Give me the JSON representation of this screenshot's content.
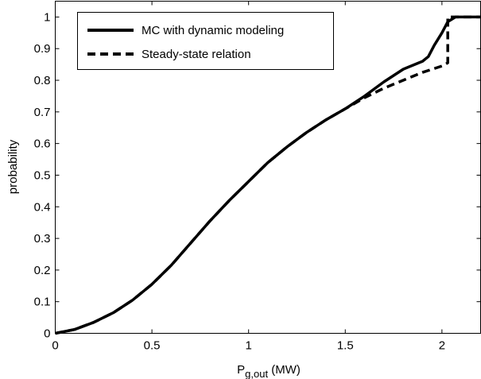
{
  "chart_data": {
    "type": "line",
    "xlabel_main": "P",
    "xlabel_sub": "g,out",
    "xlabel_unit": " (MW)",
    "ylabel": "probability",
    "xlim": [
      0,
      2.2
    ],
    "ylim": [
      0,
      1.05
    ],
    "x_ticks": [
      0,
      0.5,
      1,
      1.5,
      2
    ],
    "x_tick_labels": [
      "0",
      "0.5",
      "1",
      "1.5",
      "2"
    ],
    "y_ticks": [
      0,
      0.1,
      0.2,
      0.3,
      0.4,
      0.5,
      0.6,
      0.7,
      0.8,
      0.9,
      1
    ],
    "y_tick_labels": [
      "0",
      "0.1",
      "0.2",
      "0.3",
      "0.4",
      "0.5",
      "0.6",
      "0.7",
      "0.8",
      "0.9",
      "1"
    ],
    "grid": false,
    "legend_position": "top-left",
    "series": [
      {
        "name": "MC with dynamic modeling",
        "style": "solid",
        "color": "#000000",
        "x": [
          0,
          0.1,
          0.2,
          0.3,
          0.4,
          0.5,
          0.6,
          0.7,
          0.8,
          0.9,
          1.0,
          1.1,
          1.2,
          1.3,
          1.4,
          1.5,
          1.6,
          1.7,
          1.8,
          1.9,
          1.93,
          1.96,
          2.0,
          2.03,
          2.07,
          2.2
        ],
        "y": [
          0,
          0.012,
          0.035,
          0.065,
          0.105,
          0.155,
          0.215,
          0.285,
          0.355,
          0.42,
          0.48,
          0.54,
          0.59,
          0.635,
          0.675,
          0.71,
          0.75,
          0.795,
          0.835,
          0.86,
          0.875,
          0.91,
          0.95,
          0.985,
          1.0,
          1.0
        ]
      },
      {
        "name": "Steady-state relation",
        "style": "dashed",
        "color": "#000000",
        "x": [
          0,
          0.1,
          0.2,
          0.3,
          0.4,
          0.5,
          0.6,
          0.7,
          0.8,
          0.9,
          1.0,
          1.1,
          1.2,
          1.3,
          1.4,
          1.5,
          1.6,
          1.7,
          1.8,
          1.9,
          2.0,
          2.03,
          2.03,
          2.2
        ],
        "y": [
          0,
          0.012,
          0.035,
          0.065,
          0.105,
          0.155,
          0.215,
          0.285,
          0.355,
          0.42,
          0.48,
          0.54,
          0.59,
          0.635,
          0.675,
          0.71,
          0.745,
          0.775,
          0.8,
          0.825,
          0.845,
          0.855,
          1.0,
          1.0
        ]
      }
    ]
  }
}
